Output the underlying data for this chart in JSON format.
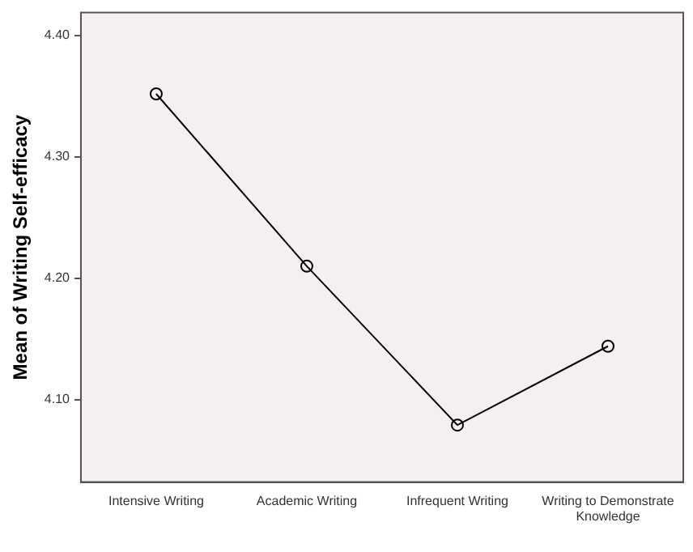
{
  "chart_data": {
    "type": "line",
    "ylabel": "Mean of Writing Self-efficacy",
    "categories": [
      "Intensive Writing",
      "Academic Writing",
      "Infrequent Writing",
      "Writing to Demonstrate Knowledge"
    ],
    "series": [
      {
        "color": "#000000",
        "values": [
          4.352,
          4.21,
          4.079,
          4.144
        ]
      }
    ],
    "ylim": [
      4.032,
      4.419
    ],
    "yticks": [
      {
        "value": 4.1,
        "label": "4.10"
      },
      {
        "value": 4.2,
        "label": "4.20"
      },
      {
        "value": 4.3,
        "label": "4.30"
      },
      {
        "value": 4.4,
        "label": "4.40"
      }
    ],
    "grid": false,
    "legend": false,
    "marker": "circle",
    "line_style": "solid"
  }
}
